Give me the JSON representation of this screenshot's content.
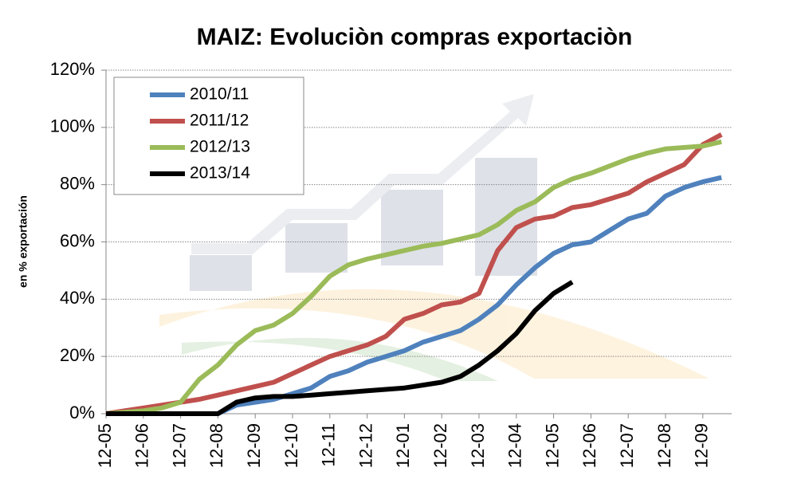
{
  "chart_data": {
    "type": "line",
    "title": "MAIZ: Evoluciòn compras exportaciòn",
    "y_label": "en % exportación",
    "categories": [
      "12-05",
      null,
      "12-06",
      null,
      "12-07",
      null,
      "12-08",
      null,
      "12-09",
      null,
      "12-10",
      null,
      "12-11",
      null,
      "12-12",
      null,
      "12-01",
      null,
      "12-02",
      null,
      "12-03",
      null,
      "12-04",
      null,
      "12-05",
      null,
      "12-06",
      null,
      "12-07",
      null,
      "12-08",
      null,
      "12-09",
      null
    ],
    "ylim": [
      0,
      120
    ],
    "yticks": [
      {
        "value": 0,
        "label": "0%"
      },
      {
        "value": 20,
        "label": "20%"
      },
      {
        "value": 40,
        "label": "40%"
      },
      {
        "value": 60,
        "label": "60%"
      },
      {
        "value": 80,
        "label": "80%"
      },
      {
        "value": 100,
        "label": "100%"
      },
      {
        "value": 120,
        "label": "120%"
      }
    ],
    "grid": true,
    "legend": "upper left",
    "series": [
      {
        "name": "2010/11",
        "color": "#4f81bd",
        "values": [
          0,
          0,
          0,
          0,
          0,
          0,
          0,
          3,
          4,
          5,
          7,
          9,
          13,
          15,
          18,
          20,
          22,
          25,
          27,
          29,
          33,
          38,
          45,
          51,
          56,
          59,
          60,
          64,
          68,
          70,
          76,
          79,
          81,
          82.5
        ]
      },
      {
        "name": "2011/12",
        "color": "#c0504d",
        "values": [
          0,
          1,
          2,
          3,
          4,
          5,
          6.5,
          8,
          9.5,
          11,
          14,
          17,
          20,
          22,
          24,
          27,
          33,
          35,
          38,
          39,
          42,
          57,
          65,
          68,
          69,
          72,
          73,
          75,
          77,
          81,
          84,
          87,
          94,
          97.5
        ]
      },
      {
        "name": "2012/13",
        "color": "#9bbb59",
        "values": [
          0,
          0.5,
          1,
          2,
          4,
          12,
          17,
          24,
          29,
          31,
          35,
          41,
          48,
          52,
          54,
          55.5,
          57,
          58.5,
          59.5,
          61,
          62.5,
          66,
          71,
          74,
          79,
          82,
          84,
          86.5,
          89,
          91,
          92.5,
          93,
          93.5,
          95
        ]
      },
      {
        "name": "2013/14",
        "color": "#000000",
        "values": [
          0,
          0,
          0,
          0,
          0,
          0,
          0,
          4,
          5.5,
          6,
          6,
          6.5,
          7,
          7.5,
          8,
          8.5,
          9,
          10,
          11,
          13,
          17,
          22,
          28,
          36,
          42,
          46,
          null,
          null,
          null,
          null,
          null,
          null,
          null,
          null
        ]
      }
    ]
  }
}
